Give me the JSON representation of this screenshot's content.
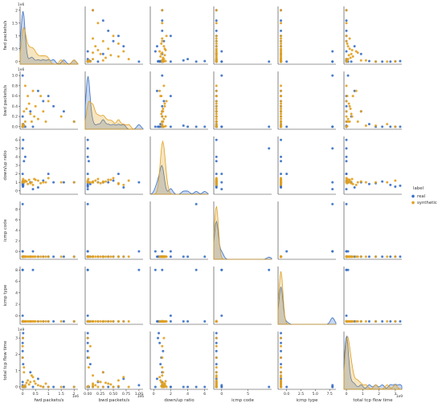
{
  "chart_data": {
    "type": "pairplot",
    "variables": [
      "fwd packets/s",
      "bwd packets/s",
      "down/up ratio",
      "icmp code",
      "icmp type",
      "total tcp flow time"
    ],
    "variable_ticks": [
      {
        "name": "fwd packets/s",
        "ticks": [
          0.0,
          0.5,
          1.0,
          1.5,
          2.0
        ],
        "tick_labels": [
          "0.0",
          "0.5",
          "1.0",
          "1.5",
          "2.0"
        ],
        "range": [
          -0.1,
          2.15
        ],
        "multiplier": "1e6"
      },
      {
        "name": "bwd packets/s",
        "ticks": [
          0.0,
          0.2,
          0.4,
          0.6,
          0.8,
          1.0
        ],
        "tick_labels": [
          "0.0",
          "0.2",
          "0.4",
          "0.6",
          "0.8",
          "1.0"
        ],
        "ytick_labels": [
          "0.0",
          "0.2",
          "0.4",
          "0.6",
          "0.8",
          "1.0"
        ],
        "xtick_labels": [
          "0.00",
          "0.25",
          "0.50",
          "0.75",
          "1.00"
        ],
        "xticks": [
          0.0,
          0.25,
          0.5,
          0.75,
          1.0
        ],
        "range": [
          -0.05,
          1.08
        ],
        "multiplier": "1e6"
      },
      {
        "name": "down/up ratio",
        "ticks": [
          0,
          1,
          2,
          3,
          4,
          5,
          6
        ],
        "xticks": [
          0,
          2,
          4,
          6
        ],
        "range": [
          -0.4,
          6.4
        ],
        "multiplier": ""
      },
      {
        "name": "icmp code",
        "ticks": [
          0,
          2,
          4,
          6,
          8
        ],
        "xticks": [
          0,
          5
        ],
        "range": [
          -1.5,
          9.5
        ],
        "multiplier": ""
      },
      {
        "name": "icmp type",
        "ticks": [
          0,
          2,
          4,
          6,
          8
        ],
        "xticks": [
          0.0,
          2.5,
          5.0,
          7.5
        ],
        "xtick_labels": [
          "0.0",
          "2.5",
          "5.0",
          "7.5"
        ],
        "range": [
          -1.5,
          8.6
        ],
        "multiplier": ""
      },
      {
        "name": "total tcp flow time",
        "ticks": [
          0,
          1,
          2,
          3
        ],
        "range": [
          -0.15,
          3.4
        ],
        "multiplier": "1e9"
      }
    ],
    "legend": {
      "title": "label",
      "placement": "right",
      "entries": [
        {
          "name": "real",
          "color": "#3a6fc4"
        },
        {
          "name": "synthetic",
          "color": "#e0a020"
        }
      ]
    },
    "series": [
      {
        "name": "real",
        "color": "#3a6fc4",
        "points": [
          [
            1.2,
            0.4,
            1.0,
            -1,
            -1,
            0.0
          ],
          [
            0.0,
            1.0,
            1.0,
            0,
            8,
            0.1
          ],
          [
            0.02,
            0.0,
            6.0,
            -1,
            -1,
            0.0
          ],
          [
            0.0,
            0.0,
            5.0,
            9,
            8,
            0.0
          ],
          [
            0.05,
            0.02,
            3.5,
            -1,
            -1,
            0.0
          ],
          [
            0.0,
            0.0,
            2.0,
            0,
            0,
            0.0
          ],
          [
            0.02,
            0.0,
            0.6,
            -1,
            -1,
            3.3
          ],
          [
            0.0,
            0.0,
            0.7,
            -1,
            -1,
            2.7
          ],
          [
            0.01,
            0.0,
            0.5,
            -1,
            -1,
            3.0
          ],
          [
            0.8,
            0.5,
            1.2,
            -1,
            -1,
            0.0
          ],
          [
            0.6,
            0.7,
            0.4,
            -1,
            -1,
            0.5
          ],
          [
            0.3,
            0.3,
            1.0,
            -1,
            -1,
            0.9
          ],
          [
            1.0,
            0.6,
            2.0,
            -1,
            -1,
            0.0
          ],
          [
            1.6,
            0.3,
            1.0,
            -1,
            -1,
            0.0
          ],
          [
            0.0,
            0.0,
            0.9,
            -1,
            -1,
            1.8
          ],
          [
            0.0,
            0.0,
            1.1,
            -1,
            -1,
            2.2
          ],
          [
            0.02,
            0.05,
            0.8,
            -1,
            -1,
            1.4
          ],
          [
            0.1,
            0.0,
            4.0,
            -1,
            -1,
            0.0
          ],
          [
            2.0,
            0.1,
            1.0,
            -1,
            -1,
            0.0
          ],
          [
            0.4,
            0.0,
            0.2,
            0,
            8,
            0.0
          ],
          [
            0.0,
            0.2,
            1.0,
            -1,
            -1,
            0.3
          ]
        ]
      },
      {
        "name": "synthetic",
        "color": "#e0a020",
        "points": [
          [
            0.0,
            0.0,
            1.0,
            -1,
            -1,
            0.0
          ],
          [
            0.1,
            0.1,
            1.1,
            -1,
            -1,
            0.1
          ],
          [
            0.3,
            0.25,
            0.9,
            -1,
            -1,
            0.3
          ],
          [
            0.5,
            0.4,
            1.3,
            -1,
            -1,
            0.2
          ],
          [
            0.2,
            0.6,
            0.8,
            -1,
            -1,
            0.4
          ],
          [
            0.6,
            0.15,
            1.2,
            -1,
            -1,
            0.1
          ],
          [
            0.05,
            0.02,
            1.0,
            -1,
            -1,
            1.2
          ],
          [
            0.02,
            0.01,
            1.4,
            -1,
            -1,
            0.05
          ],
          [
            0.8,
            0.3,
            1.0,
            -1,
            -1,
            0.0
          ],
          [
            1.0,
            0.5,
            1.5,
            -1,
            -1,
            0.0
          ],
          [
            0.4,
            0.7,
            0.7,
            -1,
            -1,
            0.6
          ],
          [
            0.15,
            0.35,
            1.1,
            -1,
            -1,
            0.25
          ],
          [
            0.0,
            0.05,
            1.0,
            -1,
            -1,
            2.5
          ],
          [
            0.01,
            0.0,
            1.2,
            -1,
            -1,
            3.0
          ],
          [
            0.0,
            0.02,
            1.0,
            -1,
            -1,
            1.8
          ],
          [
            1.5,
            0.2,
            1.0,
            -1,
            -1,
            0.0
          ],
          [
            0.25,
            0.45,
            1.3,
            -1,
            -1,
            0.15
          ],
          [
            0.7,
            0.6,
            0.9,
            -1,
            -1,
            0.05
          ],
          [
            0.35,
            0.1,
            1.0,
            -1,
            -1,
            0.7
          ],
          [
            0.1,
            0.8,
            1.2,
            -1,
            -1,
            0.0
          ],
          [
            2.0,
            0.1,
            1.0,
            -1,
            -1,
            0.0
          ],
          [
            0.45,
            0.2,
            1.4,
            -1,
            -1,
            0.35
          ],
          [
            0.05,
            0.3,
            1.1,
            -1,
            -1,
            0.9
          ],
          [
            0.9,
            0.1,
            1.0,
            -1,
            -1,
            0.2
          ]
        ]
      }
    ]
  }
}
